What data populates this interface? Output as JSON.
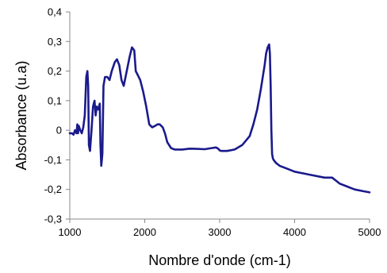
{
  "chart_data": {
    "type": "line",
    "title": "",
    "xlabel": "Nombre d'onde (cm-1)",
    "ylabel": "Absorbance (u.a)",
    "xlim": [
      1000,
      5000
    ],
    "ylim": [
      -0.3,
      0.4
    ],
    "x_ticks": [
      1000,
      2000,
      3000,
      4000,
      5000
    ],
    "x_tick_labels": [
      "1000",
      "2000",
      "3000",
      "4000",
      "5000"
    ],
    "y_ticks": [
      -0.3,
      -0.2,
      -0.1,
      0,
      0.1,
      0.2,
      0.3,
      0.4
    ],
    "y_tick_labels": [
      "-0,3",
      "-0,2",
      "-0,1",
      "0",
      "0,1",
      "0,2",
      "0,3",
      "0,4"
    ],
    "grid": false,
    "legend": "none",
    "line_color": "#1a1a8c",
    "series": [
      {
        "x": [
          1000,
          1030,
          1050,
          1070,
          1090,
          1100,
          1110,
          1120,
          1140,
          1160,
          1180,
          1200,
          1220,
          1235,
          1245,
          1255,
          1270,
          1290,
          1310,
          1330,
          1345,
          1360,
          1380,
          1400,
          1410,
          1420,
          1435,
          1450,
          1470,
          1500,
          1530,
          1560,
          1600,
          1630,
          1660,
          1690,
          1720,
          1760,
          1800,
          1830,
          1860,
          1880,
          1900,
          1940,
          1980,
          2020,
          2060,
          2100,
          2140,
          2170,
          2200,
          2240,
          2270,
          2300,
          2350,
          2400,
          2450,
          2500,
          2600,
          2700,
          2800,
          2900,
          2950,
          2980,
          3000,
          3020,
          3100,
          3200,
          3300,
          3400,
          3450,
          3500,
          3550,
          3600,
          3620,
          3640,
          3660,
          3670,
          3680,
          3690,
          3700,
          3710,
          3720,
          3750,
          3800,
          3900,
          4000,
          4200,
          4400,
          4500,
          4550,
          4600,
          4700,
          4800,
          4900,
          5000
        ],
        "values": [
          -0.01,
          -0.01,
          -0.015,
          0.0,
          -0.01,
          0.02,
          -0.01,
          0.015,
          0.0,
          -0.01,
          0.01,
          0.05,
          0.18,
          0.2,
          0.15,
          -0.05,
          -0.07,
          0.0,
          0.08,
          0.1,
          0.05,
          0.08,
          0.07,
          0.09,
          -0.05,
          -0.12,
          -0.08,
          0.15,
          0.18,
          0.18,
          0.17,
          0.2,
          0.23,
          0.24,
          0.22,
          0.17,
          0.15,
          0.2,
          0.25,
          0.28,
          0.27,
          0.2,
          0.19,
          0.17,
          0.13,
          0.08,
          0.02,
          0.01,
          0.015,
          0.02,
          0.02,
          0.01,
          -0.01,
          -0.04,
          -0.06,
          -0.065,
          -0.065,
          -0.065,
          -0.062,
          -0.063,
          -0.064,
          -0.06,
          -0.058,
          -0.062,
          -0.068,
          -0.07,
          -0.07,
          -0.065,
          -0.05,
          -0.02,
          0.02,
          0.07,
          0.14,
          0.22,
          0.26,
          0.28,
          0.29,
          0.26,
          0.15,
          0.0,
          -0.08,
          -0.095,
          -0.1,
          -0.11,
          -0.12,
          -0.13,
          -0.14,
          -0.15,
          -0.16,
          -0.16,
          -0.17,
          -0.18,
          -0.19,
          -0.2,
          -0.205,
          -0.21
        ]
      }
    ]
  }
}
